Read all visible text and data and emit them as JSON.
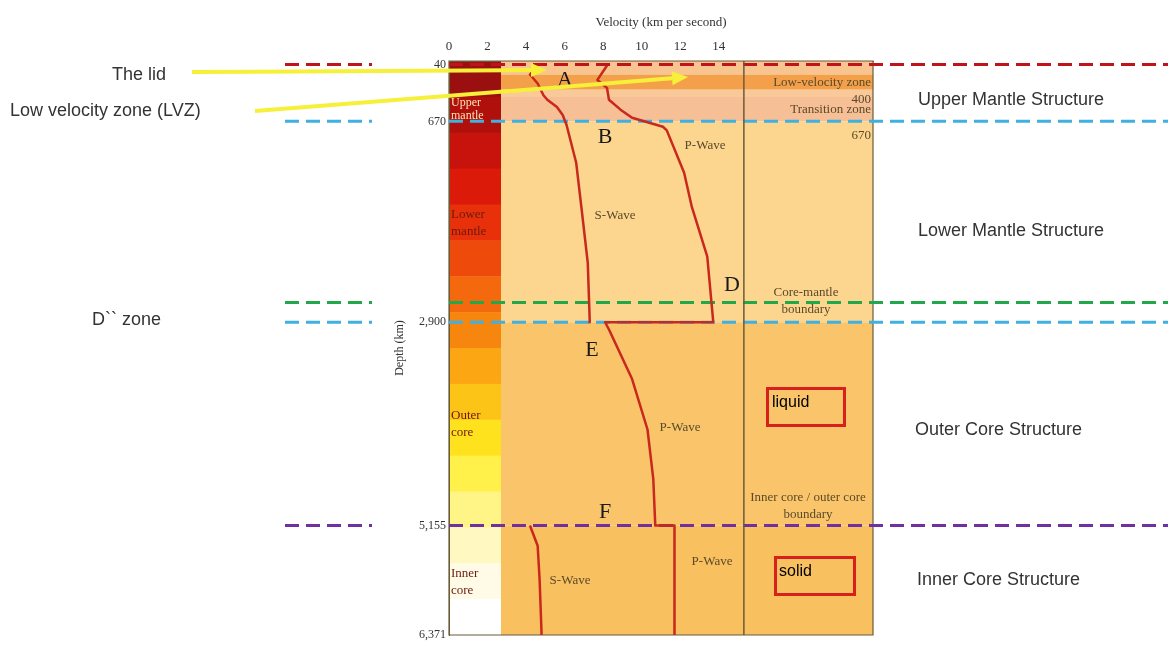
{
  "chart_data": {
    "type": "line",
    "xlabel": "Velocity (km per second)",
    "ylabel": "Depth (km)",
    "xlim": [
      0,
      22
    ],
    "xticks": [
      0,
      2,
      4,
      6,
      8,
      10,
      12,
      14
    ],
    "ylim": [
      6371,
      0
    ],
    "yticks": [
      {
        "value": 40,
        "label": "40"
      },
      {
        "value": 670,
        "label": "670"
      },
      {
        "value": 2900,
        "label": "2,900"
      },
      {
        "value": 5155,
        "label": "5,155"
      },
      {
        "value": 6371,
        "label": "6,371"
      }
    ],
    "series": [
      {
        "name": "S-Wave",
        "color": "#c8281e",
        "x": [
          4.5,
          4.2,
          4.6,
          4.9,
          5.1,
          5.6,
          5.9,
          6.1,
          6.6,
          6.9,
          7.2,
          7.3,
          7.3,
          null,
          4.2,
          4.6,
          4.7,
          4.8,
          4.8
        ],
        "values": [
          80,
          150,
          250,
          380,
          430,
          510,
          600,
          710,
          1130,
          1680,
          2240,
          2870,
          2900,
          null,
          5155,
          5380,
          5750,
          6340,
          6371
        ]
      },
      {
        "name": "P-Wave",
        "color": "#c8281e",
        "x": [
          8.2,
          7.7,
          8.2,
          8.3,
          8.9,
          9.5,
          10.3,
          11.1,
          11.3,
          12.2,
          12.6,
          13.4,
          13.7,
          13.7,
          8.1,
          8.3,
          9.5,
          10.3,
          10.6,
          10.7,
          10.7,
          11.7,
          11.7
        ],
        "values": [
          50,
          210,
          300,
          430,
          540,
          630,
          680,
          730,
          770,
          1240,
          1620,
          2170,
          2870,
          2900,
          2900,
          2980,
          3530,
          4090,
          4640,
          5140,
          5155,
          5155,
          6371
        ]
      }
    ],
    "marker": "none",
    "line_style": "solid",
    "grid": false,
    "legend": false,
    "bands": [
      {
        "axis": "y",
        "from": 0,
        "to": 150,
        "color": "#f8c590"
      },
      {
        "axis": "y",
        "from": 150,
        "to": 320,
        "color": "#f4a04a",
        "label": "Low-velocity zone"
      },
      {
        "axis": "y",
        "from": 320,
        "to": 400,
        "color": "#f9c99a"
      },
      {
        "axis": "y",
        "from": 400,
        "to": 670,
        "color": "#f7bf95",
        "label": "Transition zone"
      },
      {
        "axis": "y",
        "from": 670,
        "to": 2900,
        "color": "#fcd58e"
      },
      {
        "axis": "y",
        "from": 2900,
        "to": 5155,
        "color": "#fac56a"
      },
      {
        "axis": "y",
        "from": 5155,
        "to": 6371,
        "color": "#f9c060"
      }
    ],
    "ref_lines": [
      {
        "axis": "y",
        "value": 40,
        "color": "#c0141c",
        "line_style": "dashed"
      },
      {
        "axis": "y",
        "value": 670,
        "color": "#3fb0e0",
        "line_style": "dashed"
      },
      {
        "axis": "y",
        "value": 2680,
        "color": "#22a84a",
        "line_style": "dashed"
      },
      {
        "axis": "y",
        "value": 2900,
        "color": "#3fb0e0",
        "line_style": "dashed"
      },
      {
        "axis": "y",
        "value": 5155,
        "color": "#7030a0",
        "line_style": "dashed"
      },
      {
        "axis": "x",
        "value": 15.3,
        "color": "#6b5b3b",
        "line_style": "solid"
      }
    ],
    "annotations": [
      "A",
      "B",
      "D",
      "E",
      "F",
      "400",
      "670",
      "Core-mantle boundary",
      "Inner core / outer core boundary",
      "Upper mantle",
      "Lower mantle",
      "Outer core",
      "Inner core",
      "liquid",
      "solid",
      "The lid",
      "Low velocity zone (LVZ)",
      "D`` zone",
      "Upper Mantle Structure",
      "Lower Mantle Structure",
      "Outer Core Structure",
      "Inner Core Structure"
    ]
  }
}
